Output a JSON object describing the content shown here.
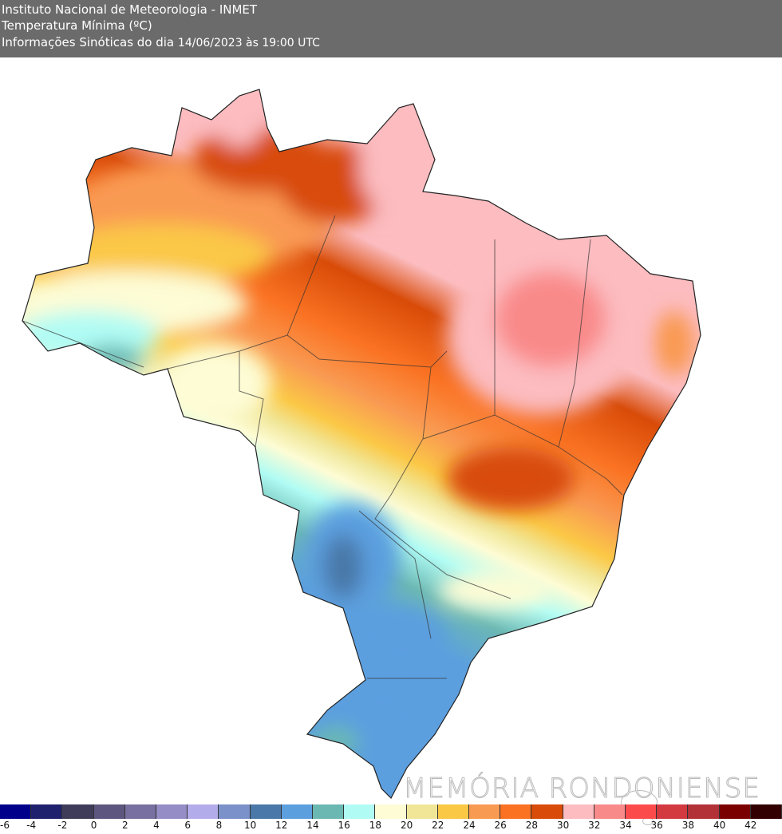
{
  "header": {
    "institution": "Instituto Nacional de Meteorologia - INMET",
    "variable": "Temperatura Mínima (ºC)",
    "info_label": "Informações Sinóticas do dia",
    "datetime": "14/06/2023 às 19:00 UTC"
  },
  "map": {
    "region": "Brazil",
    "field": "minimum temperature",
    "unit": "°C",
    "pattern": {
      "northeast_interior": "30-34",
      "north": "26-30",
      "central_west": "18-24",
      "west_acre": "14-20",
      "south": "10-14"
    }
  },
  "watermark": "MEMÓRIA RONDONIENSE",
  "colorbar": {
    "labels": [
      "-6",
      "-4",
      "-2",
      "0",
      "2",
      "4",
      "6",
      "8",
      "10",
      "12",
      "14",
      "16",
      "18",
      "20",
      "22",
      "24",
      "26",
      "28",
      "30",
      "32",
      "34",
      "36",
      "38",
      "40",
      "42"
    ],
    "colors": [
      "#00008b",
      "#1f216e",
      "#3f3c5a",
      "#5d567e",
      "#7870a0",
      "#958dc6",
      "#b3acea",
      "#7b91c9",
      "#4a78a8",
      "#5c9fdf",
      "#6bb8b3",
      "#b0fcf4",
      "#fdfcd5",
      "#f1e697",
      "#fbc846",
      "#f99a52",
      "#fa7222",
      "#d84b08",
      "#fcbcc0",
      "#f98a8a",
      "#fb4b4b",
      "#d23a40",
      "#b23238",
      "#7a0000",
      "#320000"
    ]
  }
}
